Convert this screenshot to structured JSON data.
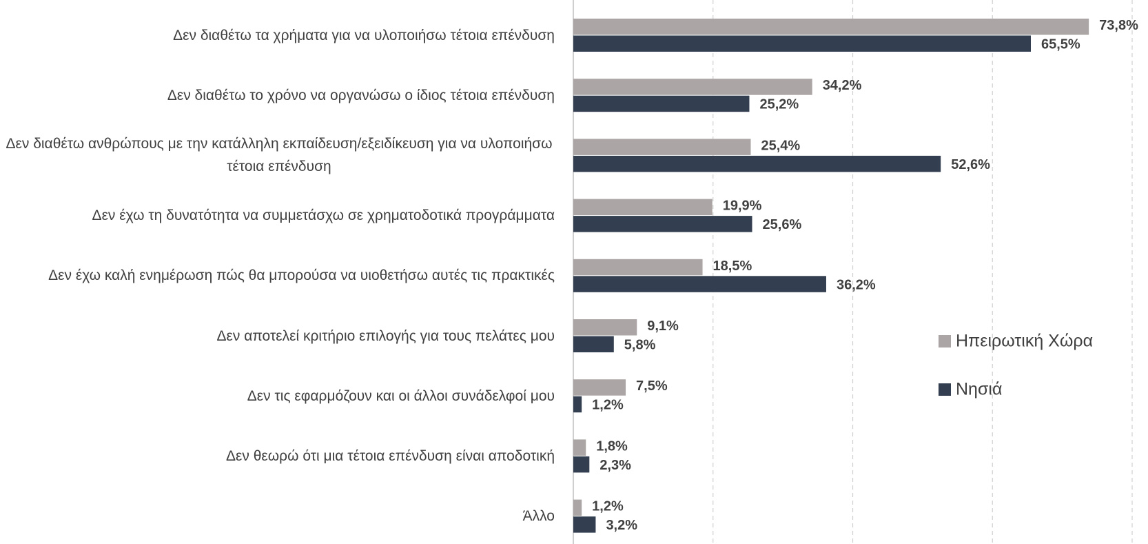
{
  "chart_data": {
    "type": "barh",
    "categories": [
      "Δεν διαθέτω τα χρήματα για να υλοποιήσω τέτοια επένδυση",
      "Δεν διαθέτω το χρόνο να οργανώσω ο ίδιος τέτοια επένδυση",
      "Δεν διαθέτω ανθρώπους με την κατάλληλη εκπαίδευση/εξειδίκευση για να υλοποιήσω τέτοια επένδυση",
      "Δεν έχω τη δυνατότητα να συμμετάσχω σε χρηματοδοτικά προγράμματα",
      "Δεν έχω καλή ενημέρωση πώς θα μπορούσα να υιοθετήσω αυτές τις πρακτικές",
      "Δεν αποτελεί κριτήριο επιλογής για τους πελάτες μου",
      "Δεν τις εφαρμόζουν και οι άλλοι συνάδελφοί μου",
      "Δεν θεωρώ ότι μια τέτοια επένδυση είναι αποδοτική",
      "Άλλο"
    ],
    "series": [
      {
        "name": "Ηπειρωτική Χώρα",
        "color": "#aba6a5",
        "values": [
          73.8,
          34.2,
          25.4,
          19.9,
          18.5,
          9.1,
          7.5,
          1.8,
          1.2
        ],
        "value_labels": [
          "73,8%",
          "34,2%",
          "25,4%",
          "19,9%",
          "18,5%",
          "9,1%",
          "7,5%",
          "1,8%",
          "1,2%"
        ]
      },
      {
        "name": "Νησιά",
        "color": "#333f50",
        "values": [
          65.5,
          25.2,
          52.6,
          25.6,
          36.2,
          5.8,
          1.2,
          2.3,
          3.2
        ],
        "value_labels": [
          "65,5%",
          "25,2%",
          "52,6%",
          "25,6%",
          "36,2%",
          "5,8%",
          "1,2%",
          "2,3%",
          "3,2%"
        ]
      }
    ],
    "xlim": [
      0,
      80
    ],
    "xticks": [
      0,
      20,
      40,
      60,
      80
    ],
    "grid": true
  }
}
